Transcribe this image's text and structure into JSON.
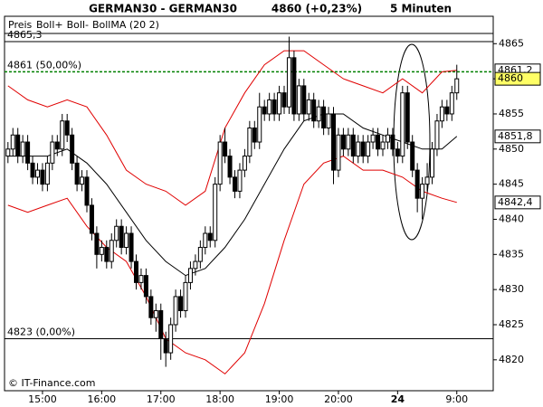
{
  "chart_data": {
    "type": "candlestick",
    "title": "GERMAN30 - GERMAN30",
    "price_label": "4860 (+0,23%)",
    "interval": "5 Minuten",
    "price_legend": "Preis",
    "credit": "© IT-Finance.com",
    "ylim": [
      4815.6,
      4868.9
    ],
    "yticks": [
      4820,
      4825,
      4830,
      4835,
      4840,
      4845,
      4850,
      4855,
      4860,
      4865
    ],
    "up_color": "#ffffff",
    "down_color": "#000000",
    "categories": [
      null,
      null,
      null,
      null,
      null,
      null,
      null,
      "15:00",
      null,
      null,
      null,
      null,
      null,
      null,
      null,
      null,
      null,
      null,
      null,
      "16:00",
      null,
      null,
      null,
      null,
      null,
      null,
      null,
      null,
      null,
      null,
      null,
      "17:00",
      null,
      null,
      null,
      null,
      null,
      null,
      null,
      null,
      null,
      null,
      null,
      "18:00",
      null,
      null,
      null,
      null,
      null,
      null,
      null,
      null,
      null,
      null,
      null,
      "19:00",
      null,
      null,
      null,
      null,
      null,
      null,
      null,
      null,
      null,
      null,
      null,
      "20:00",
      null,
      null,
      null,
      null,
      null,
      null,
      null,
      null,
      null,
      null,
      null,
      "24",
      null,
      null,
      null,
      null,
      null,
      null,
      null,
      null,
      null,
      null,
      null,
      "9:00"
    ],
    "open": [
      4849,
      4850,
      4852,
      4849,
      4851,
      4848,
      4846,
      4847,
      4845,
      4848,
      4851,
      4850,
      4854,
      4852,
      4848,
      4845,
      4846,
      4842,
      4838,
      4835,
      4836,
      4834,
      4837,
      4839,
      4836,
      4838,
      4834,
      4831,
      4832,
      4829,
      4826,
      4827,
      4823,
      4821,
      4825,
      4829,
      4827,
      4831,
      4833,
      4834,
      4836,
      4838,
      4837,
      4845,
      4851,
      4849,
      4846,
      4844,
      4847,
      4849,
      4853,
      4851,
      4856,
      4855,
      4857,
      4855,
      4858,
      4856,
      4863,
      4855,
      4859,
      4855,
      4857,
      4854,
      4856,
      4853,
      4855,
      4847,
      4852,
      4850,
      4852,
      4849,
      4851,
      4849,
      4851,
      4852,
      4850,
      4851,
      4852,
      4850,
      4849,
      4858,
      4851,
      4847,
      4843,
      4845,
      4846,
      4850,
      4854,
      4856,
      4855,
      4858
    ],
    "high": [
      4851,
      4853,
      4853,
      4852,
      4852,
      4849,
      4848,
      4848,
      4849,
      4852,
      4852,
      4855,
      4855,
      4853,
      4849,
      4847,
      4847,
      4843,
      4839,
      4837,
      4837,
      4838,
      4840,
      4840,
      4839,
      4839,
      4835,
      4833,
      4833,
      4830,
      4828,
      4828,
      4824,
      4826,
      4830,
      4830,
      4832,
      4834,
      4835,
      4837,
      4839,
      4839,
      4846,
      4852,
      4853,
      4850,
      4847,
      4848,
      4850,
      4854,
      4854,
      4858,
      4857,
      4858,
      4858,
      4859,
      4859,
      4866,
      4864,
      4860,
      4860,
      4858,
      4858,
      4857,
      4857,
      4856,
      4856,
      4853,
      4853,
      4853,
      4853,
      4852,
      4852,
      4852,
      4853,
      4853,
      4852,
      4853,
      4853,
      4851,
      4859,
      4859,
      4852,
      4848,
      4846,
      4848,
      4851,
      4855,
      4857,
      4857,
      4859,
      4862
    ],
    "low": [
      4848,
      4849,
      4848,
      4848,
      4847,
      4845,
      4845,
      4844,
      4844,
      4847,
      4849,
      4849,
      4851,
      4847,
      4844,
      4844,
      4841,
      4837,
      4833,
      4834,
      4833,
      4833,
      4836,
      4835,
      4835,
      4833,
      4830,
      4830,
      4828,
      4825,
      4824,
      4820,
      4819,
      4820,
      4824,
      4826,
      4826,
      4830,
      4832,
      4833,
      4835,
      4836,
      4836,
      4844,
      4848,
      4845,
      4843,
      4843,
      4846,
      4848,
      4850,
      4850,
      4854,
      4854,
      4854,
      4854,
      4855,
      4855,
      4854,
      4854,
      4854,
      4854,
      4853,
      4853,
      4852,
      4852,
      4845,
      4846,
      4849,
      4849,
      4848,
      4848,
      4848,
      4848,
      4850,
      4849,
      4849,
      4850,
      4849,
      4848,
      4848,
      4850,
      4846,
      4841,
      4840,
      4844,
      4845,
      4849,
      4853,
      4854,
      4854,
      4857
    ],
    "close": [
      4850,
      4852,
      4849,
      4851,
      4848,
      4846,
      4847,
      4845,
      4848,
      4851,
      4850,
      4854,
      4852,
      4848,
      4845,
      4846,
      4842,
      4838,
      4835,
      4836,
      4834,
      4837,
      4839,
      4836,
      4838,
      4834,
      4831,
      4832,
      4829,
      4826,
      4827,
      4823,
      4821,
      4825,
      4829,
      4827,
      4831,
      4833,
      4834,
      4836,
      4838,
      4837,
      4845,
      4851,
      4849,
      4846,
      4844,
      4847,
      4849,
      4853,
      4851,
      4856,
      4855,
      4857,
      4855,
      4858,
      4856,
      4863,
      4855,
      4859,
      4855,
      4857,
      4854,
      4856,
      4853,
      4855,
      4847,
      4852,
      4850,
      4852,
      4849,
      4851,
      4849,
      4851,
      4852,
      4850,
      4851,
      4852,
      4850,
      4849,
      4858,
      4851,
      4847,
      4843,
      4845,
      4846,
      4850,
      4854,
      4856,
      4855,
      4858,
      4860
    ],
    "close_label": "4860",
    "series": [
      {
        "name": "Boll+",
        "color": "#e00000",
        "x": [
          0,
          4,
          8,
          12,
          16,
          20,
          24,
          28,
          32,
          36,
          40,
          44,
          48,
          52,
          56,
          60,
          64,
          68,
          72,
          76,
          80,
          84,
          88,
          91
        ],
        "values": [
          4859,
          4857,
          4856,
          4857,
          4856,
          4852,
          4847,
          4845,
          4844,
          4842,
          4844,
          4853,
          4858,
          4862,
          4864,
          4864,
          4862,
          4860,
          4859,
          4858,
          4860,
          4858,
          4861,
          4861.2
        ],
        "end_label": "4861,2"
      },
      {
        "name": "Boll-",
        "color": "#e00000",
        "x": [
          0,
          4,
          8,
          12,
          16,
          20,
          24,
          28,
          32,
          36,
          40,
          44,
          48,
          52,
          56,
          60,
          64,
          68,
          72,
          76,
          80,
          84,
          88,
          91
        ],
        "values": [
          4842,
          4841,
          4842,
          4843,
          4839,
          4836,
          4834,
          4829,
          4823,
          4821,
          4820,
          4818,
          4821,
          4828,
          4837,
          4845,
          4848,
          4849,
          4847,
          4847,
          4846,
          4844,
          4843,
          4842.4
        ],
        "end_label": "4842,4"
      },
      {
        "name": "BollMA (20 2)",
        "color": "#000000",
        "x": [
          0,
          4,
          8,
          12,
          16,
          20,
          24,
          28,
          32,
          36,
          40,
          44,
          48,
          52,
          56,
          60,
          64,
          68,
          72,
          76,
          80,
          84,
          88,
          91
        ],
        "values": [
          4849,
          4849,
          4849,
          4850,
          4848,
          4845,
          4841,
          4837,
          4834,
          4832,
          4833,
          4836,
          4840,
          4845,
          4850,
          4854,
          4855,
          4855,
          4853,
          4852,
          4851,
          4850,
          4850,
          4851.8
        ],
        "end_label": "4851,8"
      }
    ],
    "levels": [
      {
        "value": 4865.3,
        "label": "4865,3",
        "color": "#000000",
        "dash": false
      },
      {
        "value": 4861,
        "label": "4861 (50,00%)",
        "color": "#008000",
        "dash": true
      },
      {
        "value": 4823,
        "label": "4823 (0,00%)",
        "color": "#000000",
        "dash": false
      }
    ]
  }
}
